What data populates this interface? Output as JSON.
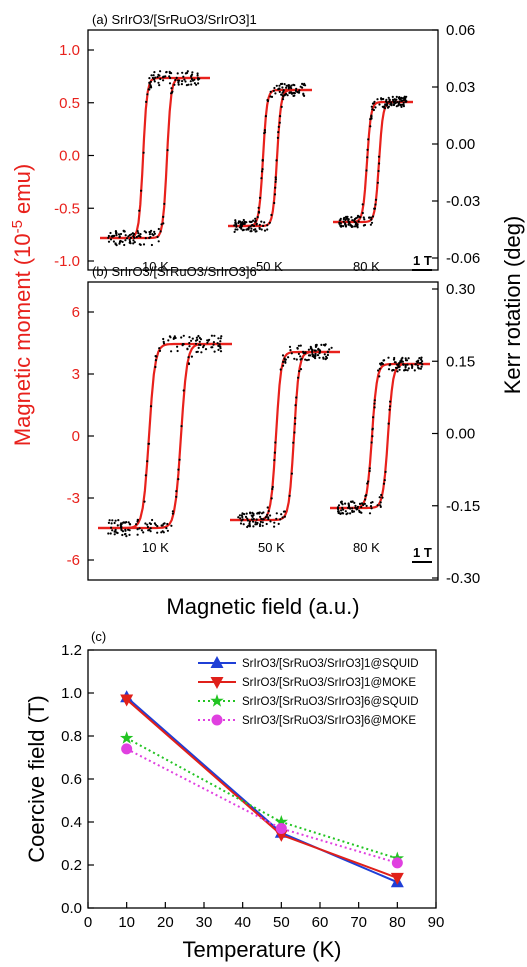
{
  "panel_a": {
    "title": "(a) SrIrO3/[SrRuO3/SrIrO3]1",
    "left_ticks": [
      "1.0",
      "0.5",
      "0.0",
      "-0.5",
      "-1.0"
    ],
    "right_ticks": [
      "0.06",
      "0.03",
      "0.00",
      "-0.03",
      "-0.06"
    ],
    "temps": [
      "10 K",
      "50 K",
      "80 K"
    ],
    "scale": "1 T"
  },
  "panel_b": {
    "title": "(b) SrIrO3/[SrRuO3/SrIrO3]6",
    "left_ticks": [
      "6",
      "3",
      "0",
      "-3",
      "-6"
    ],
    "right_ticks": [
      "0.30",
      "0.15",
      "0.00",
      "-0.15",
      "-0.30"
    ],
    "temps": [
      "10 K",
      "50 K",
      "80 K"
    ],
    "scale": "1 T"
  },
  "labels": {
    "left_axis": "Magnetic moment (10-5 emu)",
    "left_axis_main": "Magnetic moment (10",
    "left_axis_sup": "-5",
    "left_axis_end": " emu)",
    "right_axis": "Kerr rotation (deg)",
    "shared_x": "Magnetic field (a.u.)"
  },
  "colors": {
    "squid": "#e8211c",
    "moke": "#000000",
    "series_blue": "#1f3fd6",
    "series_red": "#e0201a",
    "series_green": "#22c422",
    "series_magenta": "#e040e0"
  },
  "chart_data": [
    {
      "type": "line",
      "title": "(a) SrIrO3/[SrRuO3/SrIrO3]1",
      "xlabel": "Magnetic field (a.u.)",
      "ylabel": "Magnetic moment (10-5 emu)",
      "ylabel_right": "Kerr rotation (deg)",
      "ylim": [
        -1.2,
        1.2
      ],
      "ylim_right": [
        -0.06,
        0.06
      ],
      "loops": [
        {
          "temperature": "10 K",
          "saturation": 0.65
        },
        {
          "temperature": "50 K",
          "saturation": 0.55
        },
        {
          "temperature": "80 K",
          "saturation": 0.5
        }
      ]
    },
    {
      "type": "line",
      "title": "(b) SrIrO3/[SrRuO3/SrIrO3]6",
      "xlabel": "Magnetic field (a.u.)",
      "ylabel": "Magnetic moment (10-5 emu)",
      "ylabel_right": "Kerr rotation (deg)",
      "ylim": [
        -7,
        7
      ],
      "ylim_right": [
        -0.3,
        0.3
      ],
      "loops": [
        {
          "temperature": "10 K",
          "saturation": 4.5
        },
        {
          "temperature": "50 K",
          "saturation": 4.2
        },
        {
          "temperature": "80 K",
          "saturation": 3.6
        }
      ]
    },
    {
      "type": "line",
      "title": "(c)",
      "xlabel": "Temperature (K)",
      "ylabel": "Coercive field (T)",
      "xlim": [
        0,
        90
      ],
      "ylim": [
        0.0,
        1.2
      ],
      "x_ticks": [
        "0",
        "10",
        "20",
        "30",
        "40",
        "50",
        "60",
        "70",
        "80",
        "90"
      ],
      "y_ticks": [
        "0.0",
        "0.2",
        "0.4",
        "0.6",
        "0.8",
        "1.0",
        "1.2"
      ],
      "legend_position": "top-right",
      "x": [
        10,
        50,
        80
      ],
      "series": [
        {
          "name": "SrIrO3/[SrRuO3/SrIrO3]1@SQUID",
          "values": [
            0.98,
            0.35,
            0.12
          ],
          "color": "#1f3fd6",
          "line": "solid",
          "marker": "triangle-up"
        },
        {
          "name": "SrIrO3/[SrRuO3/SrIrO3]1@MOKE",
          "values": [
            0.97,
            0.34,
            0.14
          ],
          "color": "#e0201a",
          "line": "solid",
          "marker": "triangle-down"
        },
        {
          "name": "SrIrO3/[SrRuO3/SrIrO3]6@SQUID",
          "values": [
            0.79,
            0.4,
            0.23
          ],
          "color": "#22c422",
          "line": "dotted",
          "marker": "star"
        },
        {
          "name": "SrIrO3/[SrRuO3/SrIrO3]6@MOKE",
          "values": [
            0.74,
            0.37,
            0.21
          ],
          "color": "#e040e0",
          "line": "dotted",
          "marker": "circle"
        }
      ]
    }
  ]
}
